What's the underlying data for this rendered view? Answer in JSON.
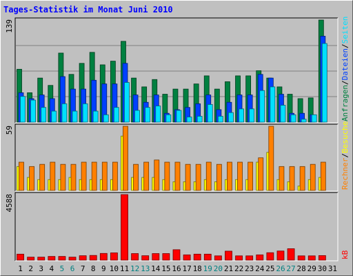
{
  "chart_data": {
    "type": "bar",
    "title": "Tages-Statistik im Monat Juni 2010",
    "categories": [
      "1",
      "2",
      "3",
      "4",
      "5",
      "6",
      "7",
      "8",
      "9",
      "10",
      "11",
      "12",
      "13",
      "14",
      "15",
      "16",
      "17",
      "18",
      "19",
      "20",
      "21",
      "22",
      "23",
      "24",
      "25",
      "26",
      "27",
      "28",
      "29",
      "30",
      "31"
    ],
    "weekend_days": [
      "5",
      "6",
      "12",
      "13",
      "19",
      "20",
      "26",
      "27"
    ],
    "panels": [
      {
        "name": "requests",
        "ymax": 139,
        "ylabel_parts": [
          "Anfragen",
          "/",
          "Dateien",
          "/",
          "Seiten"
        ],
        "series": [
          {
            "name": "Anfragen",
            "color": "#008040",
            "values": [
              72,
              40,
              60,
              50,
              94,
              65,
              80,
              95,
              78,
              83,
              110,
              60,
              48,
              58,
              38,
              45,
              45,
              52,
              63,
              45,
              55,
              63,
              63,
              70,
              60,
              48,
              38,
              32,
              33,
              139
            ]
          },
          {
            "name": "Dateien",
            "color": "#0040ff",
            "values": [
              40,
              32,
              37,
              32,
              62,
              45,
              45,
              57,
              52,
              52,
              80,
              37,
              27,
              37,
              12,
              17,
              20,
              25,
              37,
              17,
              27,
              37,
              37,
              65,
              60,
              38,
              12,
              12,
              10,
              117
            ]
          },
          {
            "name": "Seiten",
            "color": "#00e0ff",
            "values": [
              35,
              30,
              20,
              15,
              25,
              15,
              25,
              15,
              10,
              20,
              54,
              16,
              20,
              22,
              10,
              16,
              7,
              8,
              24,
              8,
              13,
              18,
              18,
              43,
              48,
              23,
              10,
              4,
              10,
              107
            ]
          }
        ]
      },
      {
        "name": "visits",
        "ymax": 59,
        "ylabel_parts": [
          "Rechner",
          "/",
          "Besuche"
        ],
        "series": [
          {
            "name": "Besuche",
            "color": "#ffff00",
            "values": [
              22,
              12,
              10,
              10,
              10,
              12,
              10,
              10,
              10,
              10,
              50,
              12,
              12,
              12,
              10,
              8,
              8,
              8,
              10,
              8,
              10,
              10,
              10,
              26,
              35,
              10,
              8,
              4,
              10,
              12
            ]
          },
          {
            "name": "Rechner",
            "color": "#ff8000",
            "values": [
              26,
              22,
              24,
              26,
              24,
              24,
              26,
              26,
              26,
              26,
              59,
              24,
              26,
              28,
              26,
              26,
              24,
              24,
              26,
              24,
              26,
              26,
              26,
              30,
              59,
              22,
              22,
              22,
              24,
              26
            ]
          }
        ]
      },
      {
        "name": "traffic",
        "ymax": 4588,
        "ylabel_parts": [
          "kB"
        ],
        "series": [
          {
            "name": "kB",
            "color": "#ff0000",
            "values": [
              420,
              210,
              210,
              260,
              260,
              210,
              310,
              330,
              470,
              510,
              4588,
              460,
              310,
              460,
              460,
              730,
              370,
              420,
              420,
              300,
              630,
              300,
              300,
              370,
              520,
              640,
              800,
              300,
              300,
              320
            ]
          }
        ]
      }
    ]
  },
  "colors": {
    "background": "#c0c0c0",
    "plot_background": "#c0c0c0",
    "gridline": "#808080",
    "title": "#0000ff",
    "weekend_label": "#008080",
    "weekday_label": "#000000",
    "separator": "#000000"
  }
}
